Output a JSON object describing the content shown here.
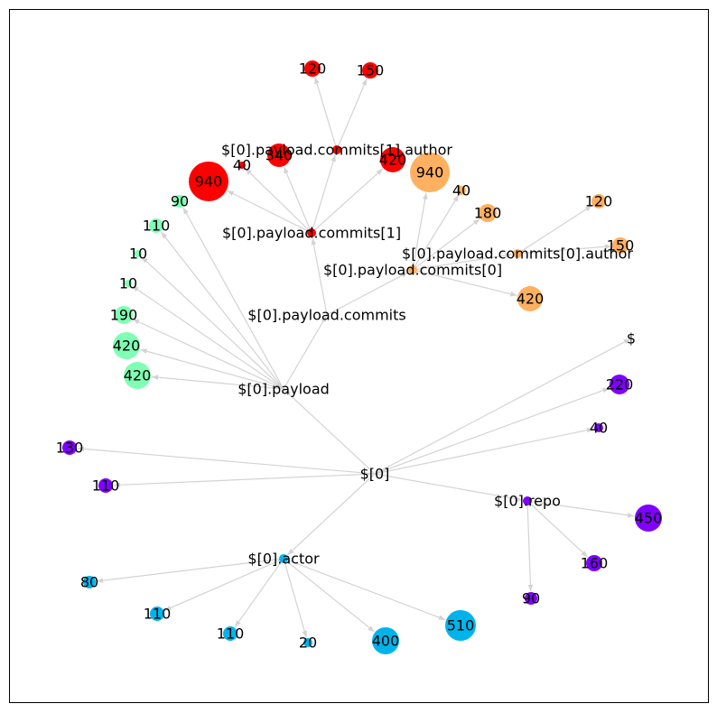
{
  "colors": {
    "payload_commits_1": "#ff0000",
    "payload_commits_0": "#ffb060",
    "payload": "#80ffb4",
    "repo": "#8000ff",
    "actor": "#00b4eb",
    "root_edge": "#d3d3d3"
  },
  "nodes": {
    "root": "$",
    "n0": "$[0]",
    "payload": "$[0].payload",
    "commits": "$[0].payload.commits",
    "commits1": "$[0].payload.commits[1]",
    "commits1_author": "$[0].payload.commits[1].author",
    "commits0": "$[0].payload.commits[0]",
    "commits0_author": "$[0].payload.commits[0].author",
    "repo": "$[0].repo",
    "actor": "$[0].actor",
    "c1a_120": "120",
    "c1a_150": "150",
    "c1_340": "340",
    "c1_40": "40",
    "c1_420": "420",
    "c1_940": "940",
    "c0_940": "940",
    "c0_40": "40",
    "c0_180": "180",
    "c0a_120": "120",
    "c0a_150": "150",
    "c0_420": "420",
    "p_90": "90",
    "p_110": "110",
    "p_10a": "10",
    "p_10b": "10",
    "p_190": "190",
    "p_420a": "420",
    "p_420b": "420",
    "r_220": "220",
    "r_40": "40",
    "r_130": "130",
    "r_110": "110",
    "repo_450": "450",
    "repo_160": "160",
    "repo_90": "90",
    "a_80": "80",
    "a_110a": "110",
    "a_110b": "110",
    "a_20": "20",
    "a_400": "400",
    "a_510": "510"
  }
}
